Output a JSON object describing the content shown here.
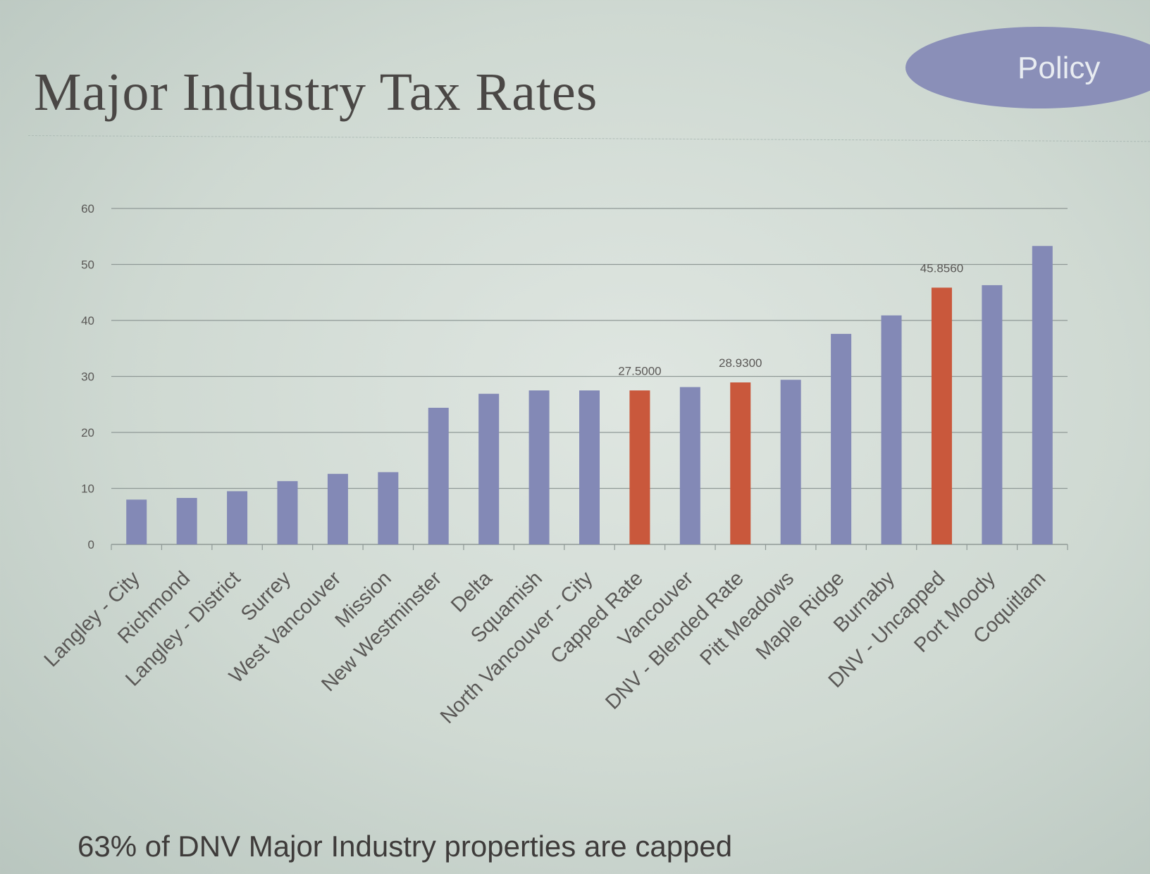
{
  "slide": {
    "title": "Major Industry Tax Rates",
    "badge": "Policy",
    "caption": "63% of DNV Major Industry properties are capped"
  },
  "colors": {
    "default_bar": "#8389b6",
    "highlight_bar": "#c9583c",
    "gridline": "#8f9996",
    "axis_text": "#5a5856",
    "badge": "#8a8fb8"
  },
  "chart_data": {
    "type": "bar",
    "title": "",
    "xlabel": "",
    "ylabel": "",
    "ylim": [
      0,
      60
    ],
    "yticks": [
      0,
      10,
      20,
      30,
      40,
      50,
      60
    ],
    "grid": true,
    "legend": "none",
    "categories": [
      "Langley - City",
      "Richmond",
      "Langley - District",
      "Surrey",
      "West Vancouver",
      "Mission",
      "New Westminster",
      "Delta",
      "Squamish",
      "North Vancouver - City",
      "Capped Rate",
      "Vancouver",
      "DNV - Blended Rate",
      "Pitt Meadows",
      "Maple Ridge",
      "Burnaby",
      "DNV - Uncapped",
      "Port Moody",
      "Coquitlam"
    ],
    "values": [
      8.0,
      8.3,
      9.5,
      11.3,
      12.6,
      12.9,
      24.4,
      26.9,
      27.5,
      27.5,
      27.5,
      28.1,
      28.93,
      29.4,
      37.6,
      40.9,
      45.856,
      46.3,
      53.3
    ],
    "highlighted": [
      false,
      false,
      false,
      false,
      false,
      false,
      false,
      false,
      false,
      false,
      true,
      false,
      true,
      false,
      false,
      false,
      true,
      false,
      false
    ],
    "data_labels": [
      "",
      "",
      "",
      "",
      "",
      "",
      "",
      "",
      "",
      "",
      "27.5000",
      "",
      "28.9300",
      "",
      "",
      "",
      "45.8560",
      "",
      ""
    ]
  }
}
